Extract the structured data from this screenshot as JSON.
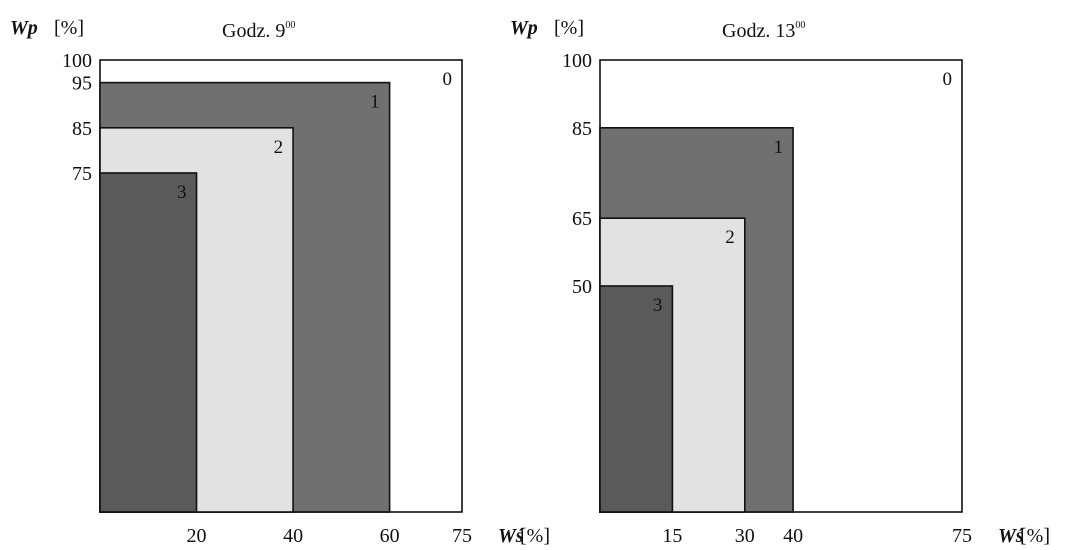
{
  "chart_data": [
    {
      "type": "area",
      "title": "Godz. 9",
      "title_sup": "00",
      "ylabel": "Wp",
      "ylabel_unit": "[%]",
      "xlabel": "Wś",
      "xlabel_unit": "[%]",
      "xlim": [
        0,
        75
      ],
      "ylim": [
        0,
        100
      ],
      "x_ticks": [
        20,
        40,
        60,
        75
      ],
      "y_ticks": [
        100,
        95,
        85,
        75
      ],
      "zones": [
        {
          "label": "0",
          "x_max": 75,
          "y_max": 100,
          "color": "#ffffff"
        },
        {
          "label": "1",
          "x_max": 60,
          "y_max": 95,
          "color": "#707070"
        },
        {
          "label": "2",
          "x_max": 40,
          "y_max": 85,
          "color": "#e2e2e2"
        },
        {
          "label": "3",
          "x_max": 20,
          "y_max": 75,
          "color": "#5a5a5a"
        }
      ]
    },
    {
      "type": "area",
      "title": "Godz. 13",
      "title_sup": "00",
      "ylabel": "Wp",
      "ylabel_unit": "[%]",
      "xlabel": "Wś",
      "xlabel_unit": "[%]",
      "xlim": [
        0,
        75
      ],
      "ylim": [
        0,
        100
      ],
      "x_ticks": [
        15,
        30,
        40,
        75
      ],
      "y_ticks": [
        100,
        85,
        65,
        50
      ],
      "zones": [
        {
          "label": "0",
          "x_max": 75,
          "y_max": 100,
          "color": "#ffffff"
        },
        {
          "label": "1",
          "x_max": 40,
          "y_max": 85,
          "color": "#707070"
        },
        {
          "label": "2",
          "x_max": 30,
          "y_max": 65,
          "color": "#e2e2e2"
        },
        {
          "label": "3",
          "x_max": 15,
          "y_max": 50,
          "color": "#5a5a5a"
        }
      ]
    }
  ]
}
